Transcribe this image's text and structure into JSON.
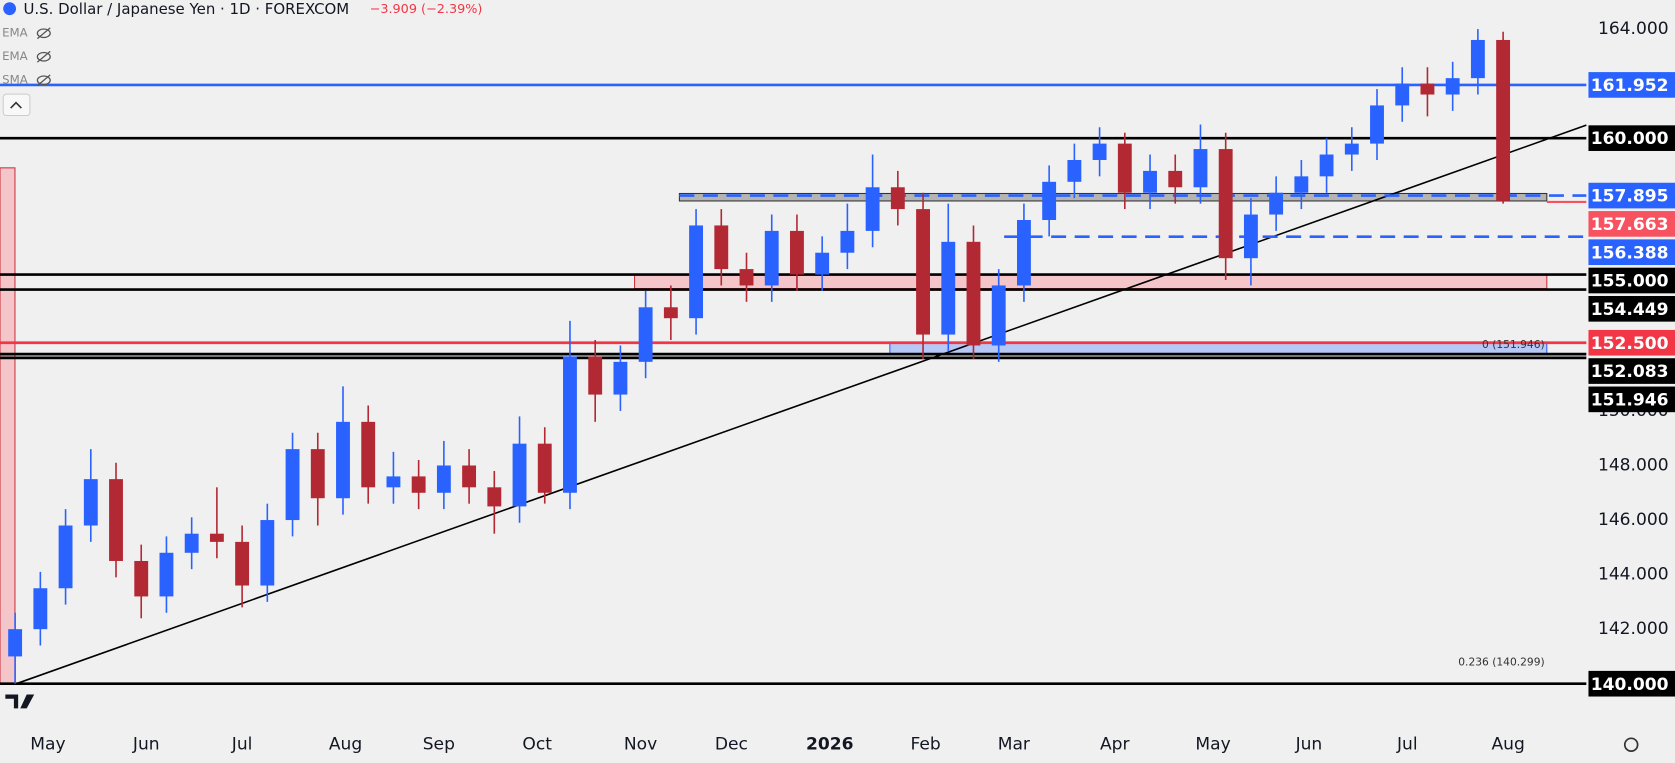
{
  "chart_data": {
    "type": "candlestick",
    "title": "U.S. Dollar / Japanese Yen · 1D · FOREXCOM",
    "change": "−3.909 (−2.39%)",
    "indicators": [
      "EMA",
      "EMA",
      "SMA"
    ],
    "up_color": "#2962ff",
    "down_color": "#b22833",
    "xlim": [
      -0.6,
      62.3
    ],
    "ylim": [
      138.43,
      165.06
    ],
    "xticks": [
      {
        "value": 1.3,
        "label": "May"
      },
      {
        "value": 5.2,
        "label": "Jun"
      },
      {
        "value": 9.0,
        "label": "Jul"
      },
      {
        "value": 13.1,
        "label": "Aug"
      },
      {
        "value": 16.8,
        "label": "Sep"
      },
      {
        "value": 20.7,
        "label": "Oct"
      },
      {
        "value": 24.8,
        "label": "Nov"
      },
      {
        "value": 28.4,
        "label": "Dec"
      },
      {
        "value": 32.3,
        "label": "2026"
      },
      {
        "value": 36.1,
        "label": "Feb"
      },
      {
        "value": 39.6,
        "label": "Mar"
      },
      {
        "value": 43.6,
        "label": "Apr"
      },
      {
        "value": 47.5,
        "label": "May"
      },
      {
        "value": 51.3,
        "label": "Jun"
      },
      {
        "value": 55.2,
        "label": "Jul"
      },
      {
        "value": 59.2,
        "label": "Aug"
      }
    ],
    "yticks": [
      {
        "value": 164,
        "label": "164.000"
      },
      {
        "value": 150,
        "label": "150.000"
      },
      {
        "value": 148,
        "label": "148.000"
      },
      {
        "value": 146,
        "label": "146.000"
      },
      {
        "value": 144,
        "label": "144.000"
      },
      {
        "value": 142,
        "label": "142.000"
      }
    ],
    "price_lines": [
      {
        "value": 161.952,
        "label": "161.952",
        "color": "#2962ff",
        "style": "solid"
      },
      {
        "value": 160,
        "label": "160.000",
        "color": "#000000",
        "style": "solid"
      },
      {
        "value": 157.895,
        "label": "157.895",
        "color": "#2962ff",
        "style": "dashed"
      },
      {
        "value": 157.663,
        "label": "157.663",
        "color": "#f7525f",
        "style": "short"
      },
      {
        "value": 156.388,
        "label": "156.388",
        "color": "#2962ff",
        "style": "dashed"
      },
      {
        "value": 155,
        "label": "155.000",
        "color": "#000000",
        "style": "solid"
      },
      {
        "value": 154.449,
        "label": "154.449",
        "color": "#000000",
        "style": "solid"
      },
      {
        "value": 152.5,
        "label": "152.500",
        "color": "#f23645",
        "style": "solid"
      },
      {
        "value": 152.083,
        "label": "152.083",
        "color": "#000000",
        "style": "solid"
      },
      {
        "value": 151.946,
        "label": "151.946",
        "color": "#000000",
        "style": "solid"
      },
      {
        "value": 140,
        "label": "140.000",
        "color": "#000000",
        "style": "solid"
      }
    ],
    "annotations": [
      {
        "value": 140.299,
        "text": "0.236 (140.299)"
      },
      {
        "value": 151.946,
        "text": "0 (151.946)"
      }
    ],
    "candles": [
      {
        "o": 141.0,
        "h": 142.6,
        "l": 140.0,
        "c": 142.0
      },
      {
        "o": 142.0,
        "h": 144.1,
        "l": 141.4,
        "c": 143.5
      },
      {
        "o": 143.5,
        "h": 146.4,
        "l": 142.9,
        "c": 145.8
      },
      {
        "o": 145.8,
        "h": 148.6,
        "l": 145.2,
        "c": 147.5
      },
      {
        "o": 147.5,
        "h": 148.1,
        "l": 143.9,
        "c": 144.5
      },
      {
        "o": 144.5,
        "h": 145.1,
        "l": 142.4,
        "c": 143.2
      },
      {
        "o": 143.2,
        "h": 145.4,
        "l": 142.6,
        "c": 144.8
      },
      {
        "o": 144.8,
        "h": 146.1,
        "l": 144.2,
        "c": 145.5
      },
      {
        "o": 145.5,
        "h": 147.2,
        "l": 144.6,
        "c": 145.2
      },
      {
        "o": 145.2,
        "h": 145.8,
        "l": 142.8,
        "c": 143.6
      },
      {
        "o": 143.6,
        "h": 146.6,
        "l": 143.0,
        "c": 146.0
      },
      {
        "o": 146.0,
        "h": 149.2,
        "l": 145.4,
        "c": 148.6
      },
      {
        "o": 148.6,
        "h": 149.2,
        "l": 145.8,
        "c": 146.8
      },
      {
        "o": 146.8,
        "h": 150.9,
        "l": 146.2,
        "c": 149.6
      },
      {
        "o": 149.6,
        "h": 150.2,
        "l": 146.6,
        "c": 147.2
      },
      {
        "o": 147.2,
        "h": 148.5,
        "l": 146.6,
        "c": 147.6
      },
      {
        "o": 147.6,
        "h": 148.2,
        "l": 146.4,
        "c": 147.0
      },
      {
        "o": 147.0,
        "h": 148.9,
        "l": 146.4,
        "c": 148.0
      },
      {
        "o": 148.0,
        "h": 148.6,
        "l": 146.6,
        "c": 147.2
      },
      {
        "o": 147.2,
        "h": 147.8,
        "l": 145.5,
        "c": 146.5
      },
      {
        "o": 146.5,
        "h": 149.8,
        "l": 145.9,
        "c": 148.8
      },
      {
        "o": 148.8,
        "h": 149.4,
        "l": 146.6,
        "c": 147.0
      },
      {
        "o": 147.0,
        "h": 153.3,
        "l": 146.4,
        "c": 152.0
      },
      {
        "o": 152.0,
        "h": 152.6,
        "l": 149.6,
        "c": 150.6
      },
      {
        "o": 150.6,
        "h": 152.4,
        "l": 150.0,
        "c": 151.8
      },
      {
        "o": 151.8,
        "h": 154.4,
        "l": 151.2,
        "c": 153.8
      },
      {
        "o": 153.8,
        "h": 154.6,
        "l": 152.6,
        "c": 153.4
      },
      {
        "o": 153.4,
        "h": 157.4,
        "l": 152.8,
        "c": 156.8
      },
      {
        "o": 156.8,
        "h": 157.4,
        "l": 154.6,
        "c": 155.2
      },
      {
        "o": 155.2,
        "h": 155.8,
        "l": 154.0,
        "c": 154.6
      },
      {
        "o": 154.6,
        "h": 157.2,
        "l": 154.0,
        "c": 156.6
      },
      {
        "o": 156.6,
        "h": 157.2,
        "l": 154.4,
        "c": 155.0
      },
      {
        "o": 155.0,
        "h": 156.4,
        "l": 154.4,
        "c": 155.8
      },
      {
        "o": 155.8,
        "h": 157.6,
        "l": 155.2,
        "c": 156.6
      },
      {
        "o": 156.6,
        "h": 159.4,
        "l": 156.0,
        "c": 158.2
      },
      {
        "o": 158.2,
        "h": 158.8,
        "l": 156.8,
        "c": 157.4
      },
      {
        "o": 157.4,
        "h": 158.0,
        "l": 151.9,
        "c": 152.8
      },
      {
        "o": 152.8,
        "h": 157.6,
        "l": 152.2,
        "c": 156.2
      },
      {
        "o": 156.2,
        "h": 156.8,
        "l": 151.9,
        "c": 152.4
      },
      {
        "o": 152.4,
        "h": 155.2,
        "l": 151.8,
        "c": 154.6
      },
      {
        "o": 154.6,
        "h": 157.6,
        "l": 154.0,
        "c": 157.0
      },
      {
        "o": 157.0,
        "h": 159.0,
        "l": 156.4,
        "c": 158.4
      },
      {
        "o": 158.4,
        "h": 159.8,
        "l": 157.8,
        "c": 159.2
      },
      {
        "o": 159.2,
        "h": 160.4,
        "l": 158.6,
        "c": 159.8
      },
      {
        "o": 159.8,
        "h": 160.2,
        "l": 157.4,
        "c": 158.0
      },
      {
        "o": 158.0,
        "h": 159.4,
        "l": 157.4,
        "c": 158.8
      },
      {
        "o": 158.8,
        "h": 159.4,
        "l": 157.6,
        "c": 158.2
      },
      {
        "o": 158.2,
        "h": 160.5,
        "l": 157.6,
        "c": 159.6
      },
      {
        "o": 159.6,
        "h": 160.2,
        "l": 154.8,
        "c": 155.6
      },
      {
        "o": 155.6,
        "h": 157.8,
        "l": 154.6,
        "c": 157.2
      },
      {
        "o": 157.2,
        "h": 158.6,
        "l": 156.6,
        "c": 158.0
      },
      {
        "o": 158.0,
        "h": 159.2,
        "l": 157.4,
        "c": 158.6
      },
      {
        "o": 158.6,
        "h": 160.0,
        "l": 158.0,
        "c": 159.4
      },
      {
        "o": 159.4,
        "h": 160.4,
        "l": 158.8,
        "c": 159.8
      },
      {
        "o": 159.8,
        "h": 161.8,
        "l": 159.2,
        "c": 161.2
      },
      {
        "o": 161.2,
        "h": 162.6,
        "l": 160.6,
        "c": 162.0
      },
      {
        "o": 162.0,
        "h": 162.6,
        "l": 160.8,
        "c": 161.6
      },
      {
        "o": 161.6,
        "h": 162.8,
        "l": 161.0,
        "c": 162.2
      },
      {
        "o": 162.2,
        "h": 164.0,
        "l": 161.6,
        "c": 163.6
      },
      {
        "o": 163.6,
        "h": 163.9,
        "l": 157.6,
        "c": 157.7
      }
    ]
  }
}
